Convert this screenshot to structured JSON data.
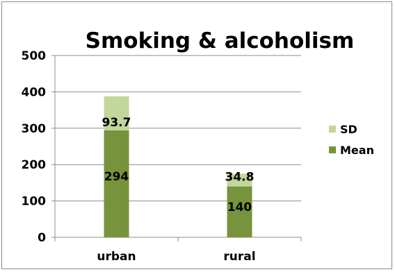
{
  "chart_data": {
    "type": "bar",
    "stacked": true,
    "title": "Smoking & alcoholism",
    "categories": [
      "urban",
      "rural"
    ],
    "series": [
      {
        "name": "Mean",
        "values": [
          294,
          140
        ],
        "color": "#77933c"
      },
      {
        "name": "SD",
        "values": [
          93.7,
          34.8
        ],
        "color": "#c3d69b"
      }
    ],
    "ylim": [
      0,
      500
    ],
    "yticks": [
      0,
      100,
      200,
      300,
      400,
      500
    ],
    "grid": true,
    "legend_position": "right",
    "data_labels": true
  }
}
